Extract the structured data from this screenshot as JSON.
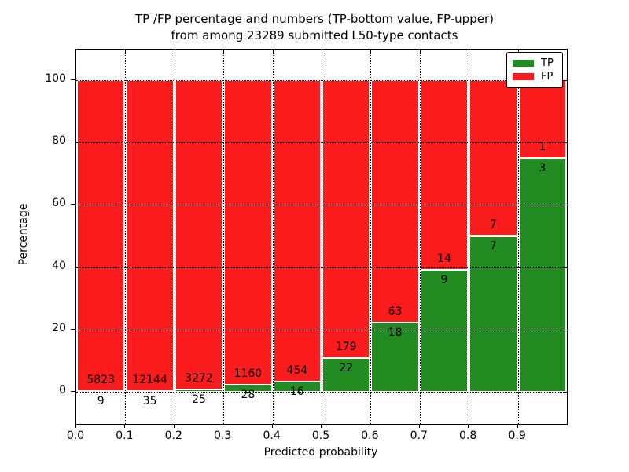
{
  "title": {
    "line1": "TP /FP percentage and numbers (TP-bottom value, FP-upper)",
    "line2": "from among 23289 submitted L50-type contacts"
  },
  "chart_data": {
    "type": "bar",
    "stacked": true,
    "normalized_to_percent": true,
    "title": "TP /FP percentage and numbers (TP-bottom value, FP-upper) from among 23289 submitted L50-type contacts",
    "xlabel": "Predicted probability",
    "ylabel": "Percentage",
    "xlim": [
      0.0,
      1.0
    ],
    "ylim": [
      -10,
      110
    ],
    "x_tick_labels": [
      "0.0",
      "0.1",
      "0.2",
      "0.3",
      "0.4",
      "0.5",
      "0.6",
      "0.7",
      "0.8",
      "0.9"
    ],
    "y_ticks": [
      0,
      20,
      40,
      60,
      80,
      100
    ],
    "grid": "dotted",
    "bin_width": 0.1,
    "bins": [
      {
        "range": "0.0-0.1",
        "tp": 9,
        "fp": 5823,
        "tp_percent": 0.15
      },
      {
        "range": "0.1-0.2",
        "tp": 35,
        "fp": 12144,
        "tp_percent": 0.29
      },
      {
        "range": "0.2-0.3",
        "tp": 25,
        "fp": 3272,
        "tp_percent": 0.76
      },
      {
        "range": "0.3-0.4",
        "tp": 28,
        "fp": 1160,
        "tp_percent": 2.36
      },
      {
        "range": "0.4-0.5",
        "tp": 16,
        "fp": 454,
        "tp_percent": 3.4
      },
      {
        "range": "0.5-0.6",
        "tp": 22,
        "fp": 179,
        "tp_percent": 10.95
      },
      {
        "range": "0.6-0.7",
        "tp": 18,
        "fp": 63,
        "tp_percent": 22.22
      },
      {
        "range": "0.7-0.8",
        "tp": 9,
        "fp": 14,
        "tp_percent": 39.13
      },
      {
        "range": "0.8-0.9",
        "tp": 7,
        "fp": 7,
        "tp_percent": 50.0
      },
      {
        "range": "0.9-1.0",
        "tp": 3,
        "fp": 1,
        "tp_percent": 75.0
      }
    ],
    "series": [
      {
        "name": "TP",
        "color": "#228b22",
        "values": [
          9,
          35,
          25,
          28,
          16,
          22,
          18,
          9,
          7,
          3
        ]
      },
      {
        "name": "FP",
        "color": "#fb1d1d",
        "values": [
          5823,
          12144,
          3272,
          1160,
          454,
          179,
          63,
          14,
          7,
          1
        ]
      }
    ],
    "legend": {
      "position": "upper right",
      "entries": [
        {
          "label": "TP",
          "color": "#228b22"
        },
        {
          "label": "FP",
          "color": "#fb1d1d"
        }
      ]
    }
  }
}
